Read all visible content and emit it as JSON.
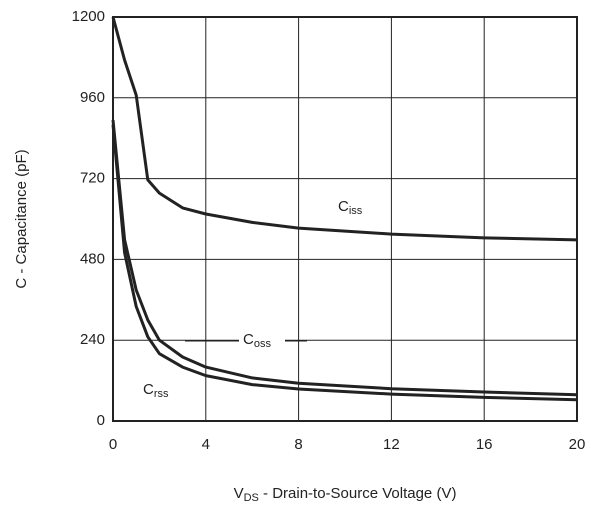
{
  "chart_data": {
    "type": "line",
    "y_label": "C - Capacitance (pF)",
    "x_label_main": "V",
    "x_label_sub": "DS",
    "x_label_rest": " - Drain-to-Source Voltage (V)",
    "x": [
      0,
      0.5,
      1,
      1.5,
      2,
      3,
      4,
      6,
      8,
      12,
      16,
      20
    ],
    "series": [
      {
        "name": "C",
        "name_sub": "iss",
        "color": "#222222",
        "values": [
          1200,
          1072,
          968,
          716,
          677,
          633,
          615,
          590,
          573,
          555,
          544,
          538
        ]
      },
      {
        "name": "C",
        "name_sub": "oss",
        "color": "#222222",
        "values": [
          894,
          538,
          389,
          300,
          240,
          190,
          160,
          128,
          112,
          96,
          86,
          78
        ]
      },
      {
        "name": "C",
        "name_sub": "rss",
        "color": "#222222",
        "values": [
          880,
          500,
          340,
          250,
          200,
          160,
          135,
          108,
          95,
          80,
          70,
          63
        ]
      }
    ],
    "xlim": [
      0,
      20
    ],
    "xticks": [
      0,
      4,
      8,
      12,
      16,
      20
    ],
    "ylim": [
      0,
      1200
    ],
    "yticks": [
      0,
      240,
      480,
      720,
      960,
      1200
    ],
    "grid": true
  }
}
